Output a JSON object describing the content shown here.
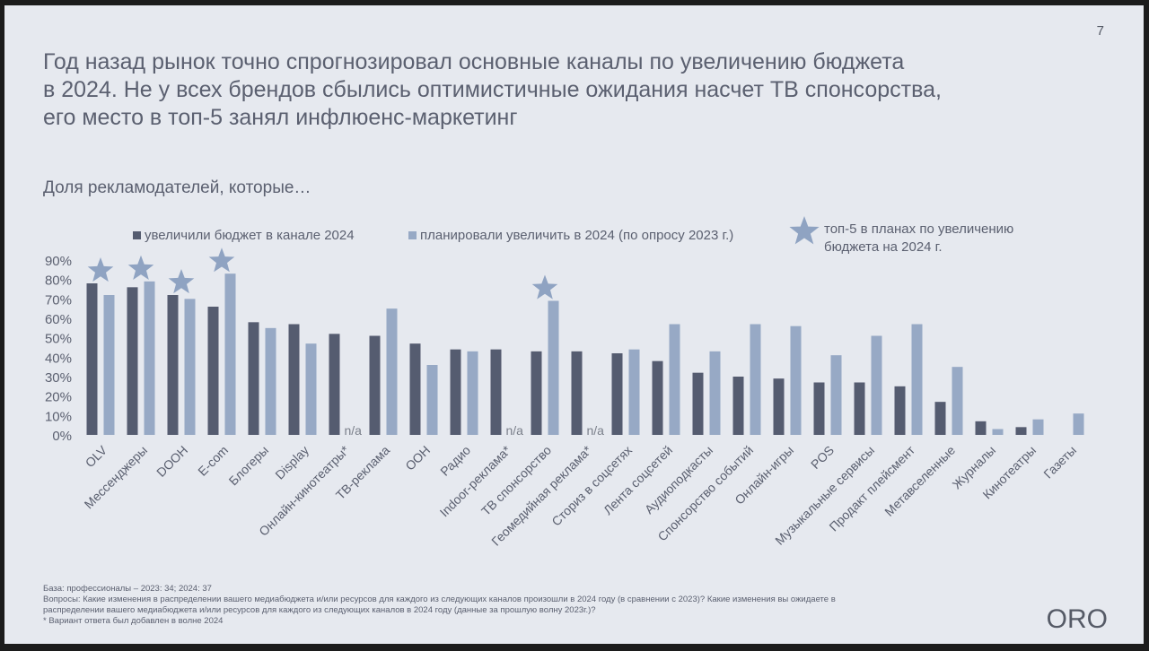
{
  "page_number": "7",
  "title_lines": [
    "Год назад рынок точно спрогнозировал основные каналы по увеличению бюджета",
    "в 2024. Не у всех брендов сбылись оптимистичные ожидания насчет ТВ спонсорства,",
    "его место в топ-5 занял инфлюенс-маркетинг"
  ],
  "subtitle": "Доля рекламодателей, которые…",
  "star_legend": {
    "icon": "star-icon",
    "line1": "топ-5 в планах по увеличению",
    "line2": "бюджета на 2024 г."
  },
  "chart_data": {
    "type": "bar",
    "title": "Доля рекламодателей, которые…",
    "xlabel": "",
    "ylabel": "",
    "ylim": [
      0,
      90
    ],
    "yticks": [
      "0%",
      "10%",
      "20%",
      "30%",
      "40%",
      "50%",
      "60%",
      "70%",
      "80%",
      "90%"
    ],
    "legend_position": "top",
    "categories": [
      "OLV",
      "Мессенджеры",
      "DOOH",
      "E-com",
      "Блогеры",
      "Display",
      "Онлайн-кинотеатры*",
      "ТВ-реклама",
      "OOH",
      "Радио",
      "Indoor-реклама*",
      "ТВ спонсорство",
      "Геомедийная реклама*",
      "Сториз в соцсетях",
      "Лента соцсетей",
      "Аудиоподкасты",
      "Спонсорство событий",
      "Онлайн-игры",
      "POS",
      "Музыкальные сервисы",
      "Продакт плейсмент",
      "Метавселенные",
      "Журналы",
      "Кинотеатры",
      "Газеты"
    ],
    "series": [
      {
        "name": "увеличили бюджет в канале 2024",
        "color": "#555c70",
        "values": [
          78,
          76,
          72,
          66,
          58,
          57,
          52,
          51,
          47,
          44,
          44,
          43,
          43,
          42,
          38,
          32,
          30,
          29,
          27,
          27,
          25,
          17,
          7,
          4,
          0
        ]
      },
      {
        "name": "планировали увеличить в 2024 (по опросу 2023 г.)",
        "color": "#97a9c5",
        "values": [
          72,
          79,
          70,
          83,
          55,
          47,
          null,
          65,
          36,
          43,
          null,
          69,
          null,
          44,
          57,
          43,
          57,
          56,
          41,
          51,
          57,
          35,
          3,
          8,
          11
        ]
      }
    ],
    "na_label": "n/a",
    "top5_starred": [
      "OLV",
      "Мессенджеры",
      "DOOH",
      "E-com",
      "ТВ спонсорство"
    ],
    "star_color": "#8fa3c2"
  },
  "footer": {
    "base": "База: профессионалы – 2023: 34; 2024: 37",
    "questions_line1": "Вопросы: Какие изменения в распределении вашего медиабюджета и/или ресурсов для каждого из следующих каналов произошли в 2024 году (в сравнении с 2023)? Какие изменения вы ожидаете в",
    "questions_line2": "распределении вашего медиабюджета и/или ресурсов для каждого из следующих каналов в 2024 году (данные за прошлую волну 2023г.)?",
    "note": "* Вариант ответа был добавлен в волне 2024"
  },
  "logo": "ORO"
}
